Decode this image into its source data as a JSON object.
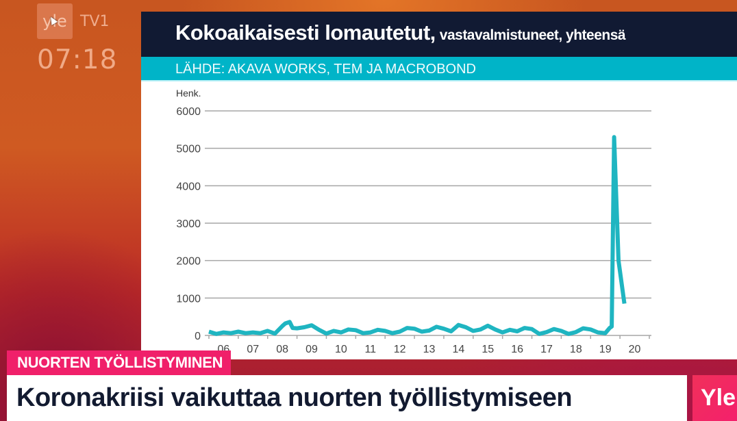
{
  "broadcast": {
    "logo_text": "yle",
    "channel": "TV1",
    "clock": "07:18"
  },
  "chart_panel": {
    "title_main": "Kokoaikaisesti lomautetut,",
    "title_sub": "vastavalmistuneet, yhteensä",
    "source": "LÄHDE: AKAVA WORKS, TEM JA MACROBOND",
    "colors": {
      "title_bg": "#111a33",
      "source_bg": "#00b4c8",
      "line": "#1fb5c1",
      "grid": "#a6a6a6"
    }
  },
  "chart_data": {
    "type": "line",
    "title": "Kokoaikaisesti lomautetut, vastavalmistuneet, yhteensä",
    "source": "LÄHDE: AKAVA WORKS, TEM JA MACROBOND",
    "xlabel": "",
    "ylabel": "Henk.",
    "ylim": [
      0,
      6000
    ],
    "yticks": [
      0,
      1000,
      2000,
      3000,
      4000,
      5000,
      6000
    ],
    "xtick_labels": [
      "06",
      "07",
      "08",
      "09",
      "10",
      "11",
      "12",
      "13",
      "14",
      "15",
      "16",
      "17",
      "18",
      "19",
      "20"
    ],
    "grid": true,
    "legend": null,
    "series": [
      {
        "name": "Kokoaikaisesti lomautetut, vastavalmistuneet",
        "x": [
          2006.0,
          2006.25,
          2006.5,
          2006.75,
          2007.0,
          2007.25,
          2007.5,
          2007.75,
          2008.0,
          2008.25,
          2008.5,
          2008.6,
          2008.75,
          2008.85,
          2009.0,
          2009.25,
          2009.5,
          2009.75,
          2010.0,
          2010.25,
          2010.5,
          2010.75,
          2011.0,
          2011.25,
          2011.5,
          2011.75,
          2012.0,
          2012.25,
          2012.5,
          2012.75,
          2013.0,
          2013.25,
          2013.5,
          2013.75,
          2014.0,
          2014.25,
          2014.5,
          2014.75,
          2015.0,
          2015.25,
          2015.5,
          2015.75,
          2016.0,
          2016.25,
          2016.5,
          2016.75,
          2017.0,
          2017.25,
          2017.5,
          2017.75,
          2018.0,
          2018.25,
          2018.5,
          2018.75,
          2019.0,
          2019.25,
          2019.5,
          2019.65,
          2019.72,
          2019.8,
          2019.95,
          2020.15
        ],
        "values": [
          100,
          40,
          80,
          60,
          100,
          60,
          80,
          60,
          120,
          50,
          250,
          320,
          360,
          200,
          190,
          220,
          270,
          150,
          50,
          120,
          80,
          160,
          140,
          60,
          80,
          150,
          120,
          60,
          100,
          200,
          180,
          100,
          130,
          230,
          180,
          110,
          280,
          220,
          120,
          160,
          260,
          160,
          80,
          150,
          110,
          200,
          170,
          40,
          90,
          170,
          120,
          40,
          90,
          190,
          160,
          80,
          60,
          200,
          240,
          5300,
          2000,
          850
        ]
      }
    ]
  },
  "lower_third": {
    "category": "NUORTEN TYÖLLISTYMINEN",
    "headline": "Koronakriisi vaikuttaa nuorten työllistymiseen",
    "brand": "Yle"
  }
}
